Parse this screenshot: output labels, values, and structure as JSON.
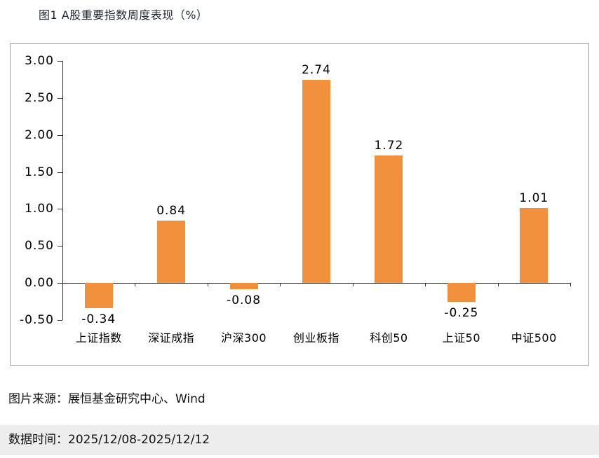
{
  "title": "图1 A股重要指数周度表现（%）",
  "footer": {
    "source_line": "图片来源：展恒基金研究中心、Wind",
    "date_line": "数据时间：2025/12/08-2025/12/12"
  },
  "chart_data": {
    "type": "bar",
    "title": "图1 A股重要指数周度表现（%）",
    "categories": [
      "上证指数",
      "深证成指",
      "沪深300",
      "创业板指",
      "科创50",
      "上证50",
      "中证500"
    ],
    "values": [
      -0.34,
      0.84,
      -0.08,
      2.74,
      1.72,
      -0.25,
      1.01
    ],
    "xlabel": "",
    "ylabel": "",
    "ylim": [
      -0.5,
      3.0
    ],
    "ytick_step": 0.5,
    "bar_color": "#F2913D",
    "grid": false,
    "legend": "none"
  }
}
